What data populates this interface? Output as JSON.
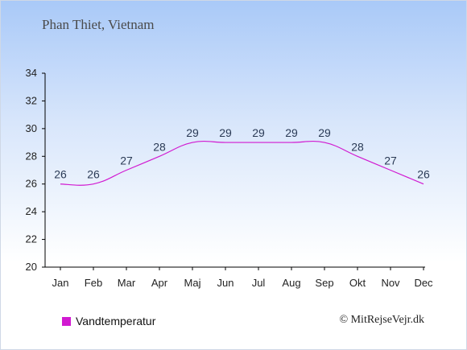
{
  "title": "Phan Thiet, Vietnam",
  "credit": "© MitRejseVejr.dk",
  "colors": {
    "series": "#d11ad1",
    "axis": "#000000",
    "label": "#2a3a55"
  },
  "chart_data": {
    "type": "line",
    "categories": [
      "Jan",
      "Feb",
      "Mar",
      "Apr",
      "Maj",
      "Jun",
      "Jul",
      "Aug",
      "Sep",
      "Okt",
      "Nov",
      "Dec"
    ],
    "series": [
      {
        "name": "Vandtemperatur",
        "values": [
          26,
          26,
          27,
          28,
          29,
          29,
          29,
          29,
          29,
          28,
          27,
          26
        ]
      }
    ],
    "yticks": [
      20,
      22,
      24,
      26,
      28,
      30,
      32,
      34
    ],
    "ylim": [
      20,
      34
    ],
    "legend": "bottom-left",
    "grid": false
  }
}
